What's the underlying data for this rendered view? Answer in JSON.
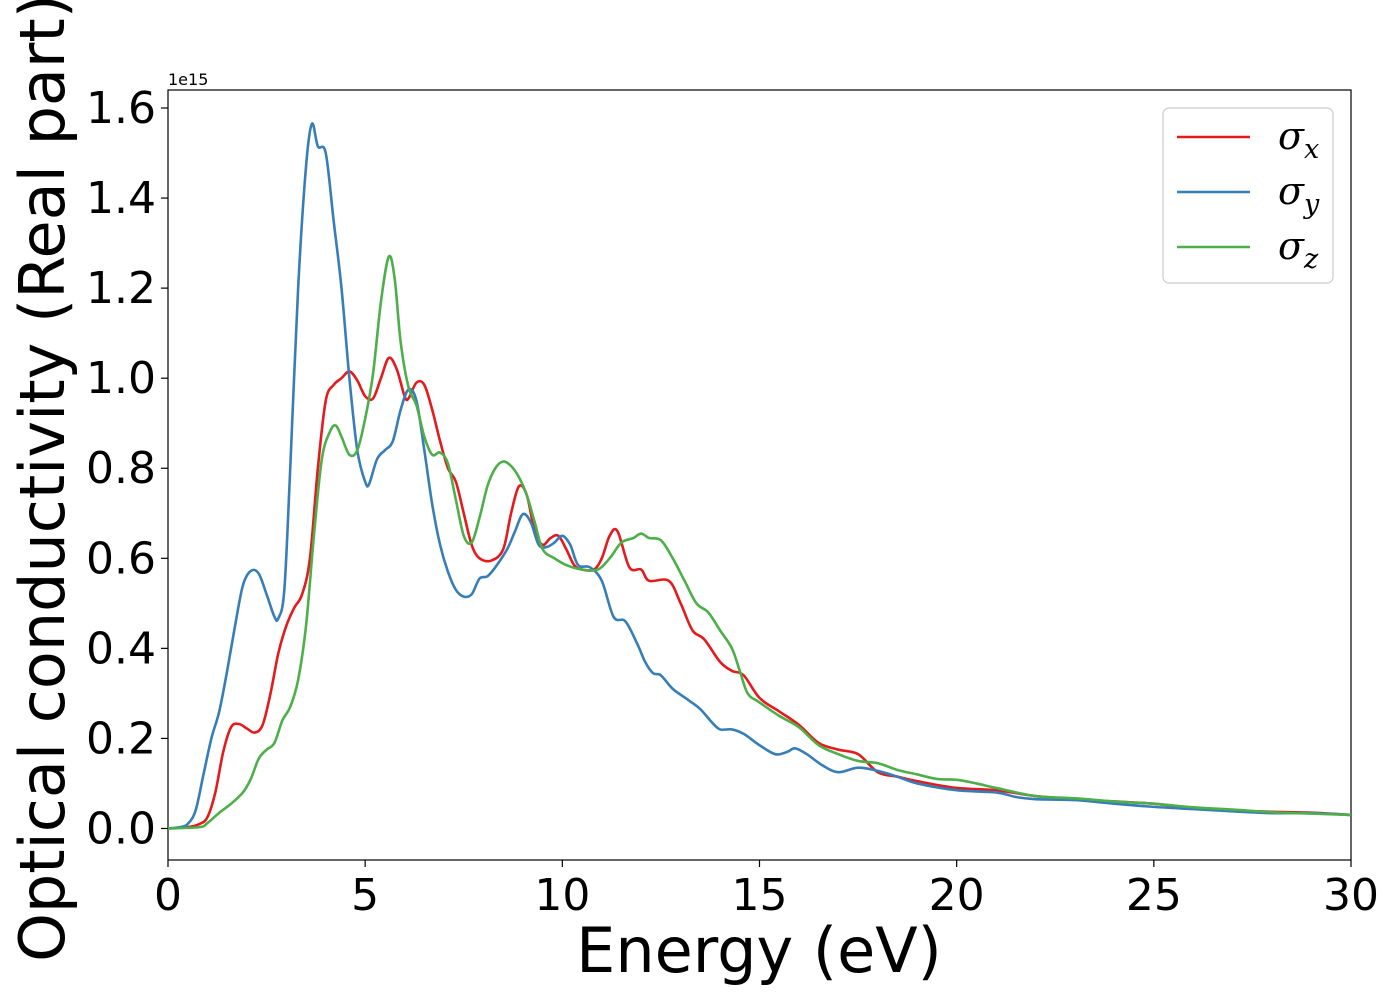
{
  "chart_data": {
    "type": "line",
    "xlabel": "Energy (eV)",
    "ylabel": "Optical conductivity (Real part)",
    "y_offset_label": "1e15",
    "xlim": [
      0,
      30
    ],
    "ylim": [
      -0.07,
      1.64
    ],
    "xticks": [
      0,
      5,
      10,
      15,
      20,
      25,
      30
    ],
    "yticks": [
      0.0,
      0.2,
      0.4,
      0.6,
      0.8,
      1.0,
      1.2,
      1.4,
      1.6
    ],
    "xtick_labels": [
      "0",
      "5",
      "10",
      "15",
      "20",
      "25",
      "30"
    ],
    "ytick_labels": [
      "0.0",
      "0.2",
      "0.4",
      "0.6",
      "0.8",
      "1.0",
      "1.2",
      "1.4",
      "1.6"
    ],
    "grid": false,
    "legend_position": "top-right",
    "series": [
      {
        "symbol": "σ",
        "subscript": "x",
        "color": "#e41a1c",
        "points": [
          [
            0,
            0
          ],
          [
            0.5,
            0.003
          ],
          [
            0.8,
            0.01
          ],
          [
            1.0,
            0.025
          ],
          [
            1.2,
            0.08
          ],
          [
            1.4,
            0.17
          ],
          [
            1.6,
            0.225
          ],
          [
            1.8,
            0.232
          ],
          [
            2.0,
            0.222
          ],
          [
            2.2,
            0.213
          ],
          [
            2.4,
            0.23
          ],
          [
            2.6,
            0.3
          ],
          [
            2.8,
            0.39
          ],
          [
            3.0,
            0.45
          ],
          [
            3.2,
            0.49
          ],
          [
            3.4,
            0.52
          ],
          [
            3.6,
            0.6
          ],
          [
            3.8,
            0.8
          ],
          [
            4.0,
            0.95
          ],
          [
            4.2,
            0.985
          ],
          [
            4.4,
            1.0
          ],
          [
            4.6,
            1.015
          ],
          [
            4.8,
            0.995
          ],
          [
            5.0,
            0.96
          ],
          [
            5.2,
            0.955
          ],
          [
            5.4,
            1.0
          ],
          [
            5.6,
            1.045
          ],
          [
            5.8,
            1.02
          ],
          [
            6.0,
            0.96
          ],
          [
            6.1,
            0.955
          ],
          [
            6.3,
            0.99
          ],
          [
            6.5,
            0.985
          ],
          [
            6.7,
            0.93
          ],
          [
            6.9,
            0.86
          ],
          [
            7.1,
            0.8
          ],
          [
            7.3,
            0.77
          ],
          [
            7.5,
            0.7
          ],
          [
            7.7,
            0.63
          ],
          [
            7.9,
            0.6
          ],
          [
            8.2,
            0.595
          ],
          [
            8.5,
            0.62
          ],
          [
            8.7,
            0.7
          ],
          [
            8.9,
            0.76
          ],
          [
            9.1,
            0.74
          ],
          [
            9.3,
            0.66
          ],
          [
            9.5,
            0.63
          ],
          [
            9.7,
            0.645
          ],
          [
            9.9,
            0.65
          ],
          [
            10.1,
            0.62
          ],
          [
            10.3,
            0.585
          ],
          [
            10.5,
            0.575
          ],
          [
            10.8,
            0.575
          ],
          [
            11.0,
            0.6
          ],
          [
            11.2,
            0.65
          ],
          [
            11.4,
            0.66
          ],
          [
            11.7,
            0.58
          ],
          [
            12.0,
            0.575
          ],
          [
            12.2,
            0.55
          ],
          [
            12.7,
            0.55
          ],
          [
            13.0,
            0.5
          ],
          [
            13.3,
            0.44
          ],
          [
            13.6,
            0.42
          ],
          [
            14.0,
            0.37
          ],
          [
            14.3,
            0.35
          ],
          [
            14.6,
            0.34
          ],
          [
            15.0,
            0.29
          ],
          [
            15.5,
            0.26
          ],
          [
            16.0,
            0.23
          ],
          [
            16.5,
            0.19
          ],
          [
            17.0,
            0.175
          ],
          [
            17.5,
            0.165
          ],
          [
            18.0,
            0.125
          ],
          [
            18.5,
            0.115
          ],
          [
            19.0,
            0.105
          ],
          [
            20.0,
            0.09
          ],
          [
            21.0,
            0.085
          ],
          [
            22.0,
            0.072
          ],
          [
            23.0,
            0.065
          ],
          [
            24.0,
            0.06
          ],
          [
            25.0,
            0.055
          ],
          [
            26.0,
            0.045
          ],
          [
            27.0,
            0.04
          ],
          [
            28.0,
            0.037
          ],
          [
            29.0,
            0.035
          ],
          [
            30.0,
            0.03
          ]
        ]
      },
      {
        "symbol": "σ",
        "subscript": "y",
        "color": "#377eb8",
        "points": [
          [
            0,
            0
          ],
          [
            0.3,
            0.003
          ],
          [
            0.5,
            0.01
          ],
          [
            0.7,
            0.04
          ],
          [
            0.9,
            0.12
          ],
          [
            1.1,
            0.2
          ],
          [
            1.3,
            0.26
          ],
          [
            1.5,
            0.35
          ],
          [
            1.7,
            0.45
          ],
          [
            1.9,
            0.54
          ],
          [
            2.1,
            0.572
          ],
          [
            2.3,
            0.566
          ],
          [
            2.5,
            0.52
          ],
          [
            2.7,
            0.47
          ],
          [
            2.8,
            0.467
          ],
          [
            2.95,
            0.53
          ],
          [
            3.1,
            0.8
          ],
          [
            3.3,
            1.2
          ],
          [
            3.5,
            1.47
          ],
          [
            3.65,
            1.565
          ],
          [
            3.8,
            1.515
          ],
          [
            4.0,
            1.5
          ],
          [
            4.2,
            1.35
          ],
          [
            4.4,
            1.2
          ],
          [
            4.6,
            1.0
          ],
          [
            4.8,
            0.84
          ],
          [
            5.0,
            0.77
          ],
          [
            5.1,
            0.765
          ],
          [
            5.3,
            0.82
          ],
          [
            5.5,
            0.84
          ],
          [
            5.7,
            0.86
          ],
          [
            5.9,
            0.93
          ],
          [
            6.1,
            0.975
          ],
          [
            6.3,
            0.95
          ],
          [
            6.5,
            0.84
          ],
          [
            6.7,
            0.72
          ],
          [
            6.9,
            0.63
          ],
          [
            7.1,
            0.57
          ],
          [
            7.3,
            0.53
          ],
          [
            7.5,
            0.515
          ],
          [
            7.7,
            0.52
          ],
          [
            7.9,
            0.555
          ],
          [
            8.1,
            0.56
          ],
          [
            8.3,
            0.58
          ],
          [
            8.6,
            0.62
          ],
          [
            8.8,
            0.66
          ],
          [
            9.0,
            0.698
          ],
          [
            9.2,
            0.68
          ],
          [
            9.4,
            0.63
          ],
          [
            9.6,
            0.625
          ],
          [
            9.8,
            0.635
          ],
          [
            10.0,
            0.65
          ],
          [
            10.2,
            0.63
          ],
          [
            10.4,
            0.585
          ],
          [
            10.7,
            0.58
          ],
          [
            11.0,
            0.55
          ],
          [
            11.3,
            0.47
          ],
          [
            11.6,
            0.46
          ],
          [
            11.9,
            0.41
          ],
          [
            12.1,
            0.37
          ],
          [
            12.3,
            0.345
          ],
          [
            12.5,
            0.34
          ],
          [
            12.8,
            0.31
          ],
          [
            13.2,
            0.285
          ],
          [
            13.5,
            0.265
          ],
          [
            13.8,
            0.235
          ],
          [
            14.0,
            0.22
          ],
          [
            14.3,
            0.22
          ],
          [
            14.6,
            0.21
          ],
          [
            15.0,
            0.185
          ],
          [
            15.4,
            0.165
          ],
          [
            15.7,
            0.17
          ],
          [
            15.9,
            0.178
          ],
          [
            16.2,
            0.165
          ],
          [
            16.6,
            0.14
          ],
          [
            17.0,
            0.125
          ],
          [
            17.5,
            0.135
          ],
          [
            18.0,
            0.128
          ],
          [
            18.5,
            0.115
          ],
          [
            19.0,
            0.1
          ],
          [
            20.0,
            0.085
          ],
          [
            21.0,
            0.08
          ],
          [
            21.5,
            0.07
          ],
          [
            22.0,
            0.065
          ],
          [
            23.0,
            0.063
          ],
          [
            24.0,
            0.055
          ],
          [
            25.0,
            0.048
          ],
          [
            26.0,
            0.043
          ],
          [
            27.0,
            0.038
          ],
          [
            28.0,
            0.034
          ],
          [
            29.0,
            0.034
          ],
          [
            30.0,
            0.03
          ]
        ]
      },
      {
        "symbol": "σ",
        "subscript": "z",
        "color": "#4daf4a",
        "points": [
          [
            0,
            0
          ],
          [
            0.8,
            0.003
          ],
          [
            1.0,
            0.012
          ],
          [
            1.3,
            0.035
          ],
          [
            1.6,
            0.055
          ],
          [
            1.9,
            0.08
          ],
          [
            2.1,
            0.11
          ],
          [
            2.3,
            0.155
          ],
          [
            2.5,
            0.175
          ],
          [
            2.7,
            0.19
          ],
          [
            2.9,
            0.24
          ],
          [
            3.1,
            0.27
          ],
          [
            3.3,
            0.33
          ],
          [
            3.5,
            0.45
          ],
          [
            3.7,
            0.65
          ],
          [
            3.9,
            0.82
          ],
          [
            4.1,
            0.88
          ],
          [
            4.25,
            0.895
          ],
          [
            4.4,
            0.87
          ],
          [
            4.6,
            0.83
          ],
          [
            4.8,
            0.84
          ],
          [
            5.0,
            0.91
          ],
          [
            5.2,
            1.01
          ],
          [
            5.4,
            1.17
          ],
          [
            5.6,
            1.27
          ],
          [
            5.75,
            1.22
          ],
          [
            5.9,
            1.08
          ],
          [
            6.1,
            0.98
          ],
          [
            6.3,
            0.94
          ],
          [
            6.5,
            0.87
          ],
          [
            6.7,
            0.83
          ],
          [
            6.9,
            0.835
          ],
          [
            7.1,
            0.81
          ],
          [
            7.3,
            0.73
          ],
          [
            7.5,
            0.65
          ],
          [
            7.7,
            0.635
          ],
          [
            7.9,
            0.69
          ],
          [
            8.1,
            0.76
          ],
          [
            8.3,
            0.8
          ],
          [
            8.5,
            0.815
          ],
          [
            8.7,
            0.805
          ],
          [
            8.9,
            0.78
          ],
          [
            9.1,
            0.74
          ],
          [
            9.3,
            0.68
          ],
          [
            9.5,
            0.62
          ],
          [
            9.8,
            0.6
          ],
          [
            10.1,
            0.585
          ],
          [
            10.5,
            0.575
          ],
          [
            10.9,
            0.575
          ],
          [
            11.2,
            0.6
          ],
          [
            11.5,
            0.635
          ],
          [
            11.8,
            0.645
          ],
          [
            12.0,
            0.655
          ],
          [
            12.2,
            0.645
          ],
          [
            12.5,
            0.64
          ],
          [
            12.8,
            0.6
          ],
          [
            13.1,
            0.55
          ],
          [
            13.4,
            0.5
          ],
          [
            13.7,
            0.48
          ],
          [
            14.0,
            0.44
          ],
          [
            14.3,
            0.4
          ],
          [
            14.5,
            0.35
          ],
          [
            14.7,
            0.3
          ],
          [
            15.0,
            0.28
          ],
          [
            15.5,
            0.25
          ],
          [
            16.0,
            0.225
          ],
          [
            16.5,
            0.185
          ],
          [
            17.0,
            0.165
          ],
          [
            17.5,
            0.15
          ],
          [
            18.0,
            0.145
          ],
          [
            18.5,
            0.13
          ],
          [
            19.0,
            0.12
          ],
          [
            19.5,
            0.11
          ],
          [
            20.0,
            0.108
          ],
          [
            20.5,
            0.1
          ],
          [
            21.0,
            0.09
          ],
          [
            22.0,
            0.072
          ],
          [
            23.0,
            0.067
          ],
          [
            24.0,
            0.06
          ],
          [
            25.0,
            0.055
          ],
          [
            26.0,
            0.047
          ],
          [
            27.0,
            0.042
          ],
          [
            28.0,
            0.036
          ],
          [
            29.0,
            0.033
          ],
          [
            30.0,
            0.03
          ]
        ]
      }
    ]
  }
}
